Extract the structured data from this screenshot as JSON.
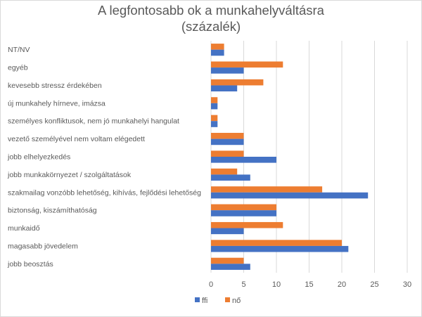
{
  "chart_data": {
    "type": "bar",
    "orientation": "horizontal",
    "title": "A legfontosabb ok a munkahelyváltásra",
    "subtitle": "(százalék)",
    "xlabel": "",
    "ylabel": "",
    "xlim": [
      0,
      30
    ],
    "xticks": [
      0,
      5,
      10,
      15,
      20,
      25,
      30
    ],
    "grid": true,
    "legend_position": "bottom",
    "categories": [
      "NT/NV",
      "egyéb",
      "kevesebb stressz érdekében",
      "új munkahely hírneve, imázsa",
      "személyes konfliktusok, nem jó munkahelyi hangulat",
      "vezető személyével nem voltam elégedett",
      "jobb elhelyezkedés",
      "jobb munkakörnyezet / szolgáltatások",
      "szakmailag vonzóbb lehetőség, kihívás, fejlődési lehetőség",
      "biztonság, kiszámíthatóság",
      "munkaidő",
      "magasabb jövedelem",
      "jobb beosztás"
    ],
    "series": [
      {
        "name": "ffi",
        "color": "#4472C4",
        "values": [
          2,
          5,
          4,
          1,
          1,
          5,
          10,
          6,
          24,
          10,
          5,
          21,
          6
        ]
      },
      {
        "name": "nő",
        "color": "#ED7D31",
        "values": [
          2,
          11,
          8,
          1,
          1,
          5,
          5,
          4,
          17,
          10,
          11,
          20,
          5
        ]
      }
    ]
  }
}
